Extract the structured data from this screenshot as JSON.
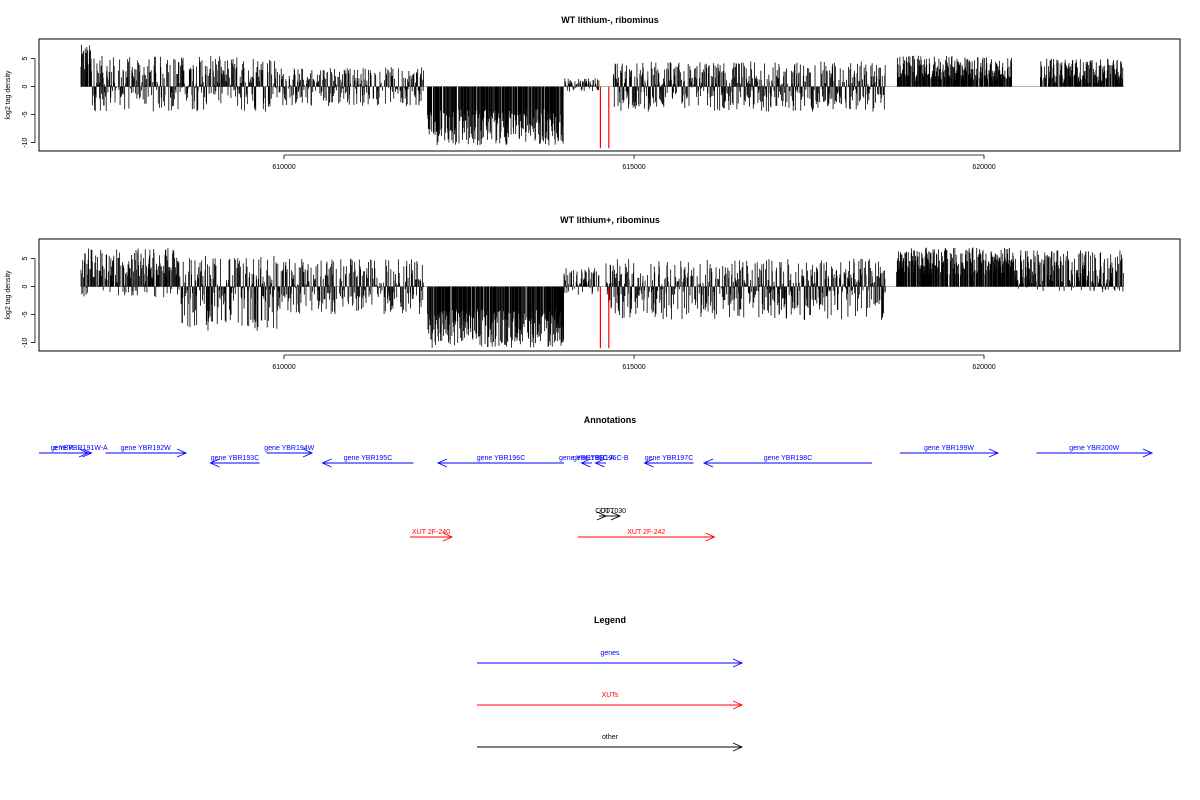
{
  "chart_data": [
    {
      "type": "bar",
      "title": "WT lithium-, ribominus",
      "ylabel": "log2 tag density",
      "ylim": [
        -11.5,
        8.5
      ],
      "yticks": [
        "-10",
        "-5",
        "0",
        "5"
      ],
      "xlim": [
        606500,
        622800
      ],
      "xticks": [
        "610000",
        "615000",
        "620000"
      ],
      "markers": [
        614520,
        614640
      ],
      "marker_color": "#ff0000",
      "series": [
        {
          "segments": [
            {
              "from": 607100,
              "to": 607250,
              "min": 1.5,
              "max": 7.5
            },
            {
              "from": 607250,
              "to": 609900,
              "min": -4.5,
              "max": 5.5
            },
            {
              "from": 609900,
              "to": 612000,
              "min": -3.5,
              "max": 3.5
            },
            {
              "from": 612050,
              "to": 614000,
              "min": -10.5,
              "max": -4
            },
            {
              "from": 614000,
              "to": 614500,
              "min": -1,
              "max": 1.5
            },
            {
              "from": 614700,
              "to": 618600,
              "min": -4.5,
              "max": 4.5
            },
            {
              "from": 618750,
              "to": 620400,
              "min": 1,
              "max": 5.5
            },
            {
              "from": 620800,
              "to": 622000,
              "min": 0.5,
              "max": 5
            }
          ]
        }
      ]
    },
    {
      "type": "bar",
      "title": "WT lithium+, ribominus",
      "ylabel": "log2 tag density",
      "ylim": [
        -11.5,
        8.5
      ],
      "yticks": [
        "-10",
        "-5",
        "0",
        "5"
      ],
      "xlim": [
        606500,
        622800
      ],
      "xticks": [
        "610000",
        "615000",
        "620000"
      ],
      "markers": [
        614520,
        614640
      ],
      "marker_color": "#ff0000",
      "series": [
        {
          "segments": [
            {
              "from": 607100,
              "to": 608500,
              "min": -2,
              "max": 7
            },
            {
              "from": 608500,
              "to": 609900,
              "min": -8,
              "max": 5.5
            },
            {
              "from": 609900,
              "to": 612000,
              "min": -5,
              "max": 5
            },
            {
              "from": 612050,
              "to": 614000,
              "min": -11,
              "max": -4
            },
            {
              "from": 614000,
              "to": 614500,
              "min": -1.5,
              "max": 3.5
            },
            {
              "from": 614600,
              "to": 618600,
              "min": -6,
              "max": 5
            },
            {
              "from": 618750,
              "to": 620400,
              "min": 2,
              "max": 7
            },
            {
              "from": 620400,
              "to": 622000,
              "min": -1,
              "max": 6.5
            }
          ]
        }
      ]
    }
  ],
  "annotations": {
    "title": "Annotations",
    "genes": [
      {
        "label": "e YBR",
        "start": 606500,
        "end": 607200,
        "strand": "+",
        "row": 0
      },
      {
        "label": "gene YBR191W-A",
        "start": 606900,
        "end": 607250,
        "strand": "+",
        "row": 0
      },
      {
        "label": "gene YBR192W",
        "start": 607450,
        "end": 608600,
        "strand": "+",
        "row": 0
      },
      {
        "label": "gene YBR193C",
        "start": 608950,
        "end": 609650,
        "strand": "-",
        "row": 1
      },
      {
        "label": "gene YBR194W",
        "start": 609750,
        "end": 610400,
        "strand": "+",
        "row": 0
      },
      {
        "label": "gene YBR195C",
        "start": 610550,
        "end": 611850,
        "strand": "-",
        "row": 1
      },
      {
        "label": "gene YBR196C",
        "start": 612200,
        "end": 614000,
        "strand": "-",
        "row": 1
      },
      {
        "label": "gene YBR196C-A",
        "start": 614250,
        "end": 614400,
        "strand": "-",
        "row": 1
      },
      {
        "label": "gene YBR196C-B",
        "start": 614450,
        "end": 614600,
        "strand": "-",
        "row": 1
      },
      {
        "label": "gene YBR197C",
        "start": 615150,
        "end": 615850,
        "strand": "-",
        "row": 1
      },
      {
        "label": "gene YBR198C",
        "start": 616000,
        "end": 618400,
        "strand": "-",
        "row": 1
      },
      {
        "label": "gene YBR199W",
        "start": 618800,
        "end": 620200,
        "strand": "+",
        "row": 0
      },
      {
        "label": "gene YBR200W",
        "start": 620750,
        "end": 622400,
        "strand": "+",
        "row": 0
      }
    ],
    "other": [
      {
        "label": "CUT",
        "start": 614500,
        "end": 614600,
        "strand": "+"
      },
      {
        "label": "CUT030",
        "start": 614600,
        "end": 614800,
        "strand": "+"
      }
    ],
    "xuts": [
      {
        "label": "XUT 2F-240",
        "start": 611800,
        "end": 612400,
        "strand": "+"
      },
      {
        "label": "XUT 2F-242",
        "start": 614200,
        "end": 616150,
        "strand": "+"
      }
    ]
  },
  "legend": {
    "title": "Legend",
    "items": [
      {
        "label": "genes",
        "color": "#0000ff"
      },
      {
        "label": "XUTs",
        "color": "#ff0000"
      },
      {
        "label": "other",
        "color": "#000000"
      }
    ]
  },
  "colors": {
    "genes": "#0000ff",
    "xuts": "#ff0000",
    "other": "#000000",
    "signal": "#000000"
  }
}
